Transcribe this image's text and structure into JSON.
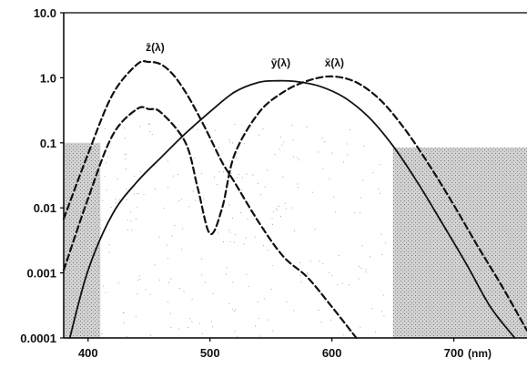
{
  "chart_data": {
    "type": "line",
    "title": "",
    "xlabel": "(nm)",
    "ylabel": "",
    "x_unit": "(nm)",
    "xlim": [
      380,
      760
    ],
    "ylim": [
      0.0001,
      10
    ],
    "yscale": "log",
    "grid": false,
    "legend": "none",
    "x_ticks": [
      {
        "value": 400,
        "label": "400"
      },
      {
        "value": 500,
        "label": "500"
      },
      {
        "value": 600,
        "label": "600"
      },
      {
        "value": 700,
        "label": "700"
      }
    ],
    "y_ticks": [
      {
        "value": 10,
        "label": "10.0"
      },
      {
        "value": 1,
        "label": "1.0"
      },
      {
        "value": 0.1,
        "label": "0.1"
      },
      {
        "value": 0.01,
        "label": "0.01"
      },
      {
        "value": 0.001,
        "label": "0.001"
      },
      {
        "value": 0.0001,
        "label": "0.0001"
      }
    ],
    "series": [
      {
        "name": "z̄(λ)",
        "label_at": [
          455,
          2.6
        ],
        "style": "dashed",
        "x": [
          380,
          400,
          420,
          440,
          450,
          460,
          470,
          480,
          490,
          500,
          510,
          520,
          540,
          560,
          580,
          600,
          620
        ],
        "y": [
          0.0068,
          0.068,
          0.55,
          1.6,
          1.75,
          1.6,
          1.1,
          0.6,
          0.28,
          0.12,
          0.05,
          0.025,
          0.006,
          0.0018,
          0.00085,
          0.0003,
          0.0001
        ]
      },
      {
        "name": "ȳ(λ)",
        "label_at": [
          558,
          1.5
        ],
        "style": "solid",
        "x": [
          385,
          400,
          420,
          440,
          460,
          480,
          500,
          520,
          540,
          555,
          570,
          590,
          610,
          630,
          650,
          670,
          690,
          710,
          730,
          750
        ],
        "y": [
          0.0001,
          0.0011,
          0.008,
          0.025,
          0.06,
          0.14,
          0.3,
          0.6,
          0.85,
          0.9,
          0.88,
          0.74,
          0.5,
          0.25,
          0.09,
          0.025,
          0.006,
          0.0014,
          0.0003,
          0.0001
        ]
      },
      {
        "name": "x̄(λ)",
        "label_at": [
          602,
          1.5
        ],
        "style": "dashed",
        "x": [
          380,
          400,
          420,
          440,
          450,
          460,
          480,
          490,
          500,
          510,
          520,
          540,
          560,
          580,
          600,
          620,
          640,
          660,
          680,
          700,
          720,
          740,
          760
        ],
        "y": [
          0.0011,
          0.014,
          0.13,
          0.33,
          0.33,
          0.29,
          0.1,
          0.02,
          0.004,
          0.01,
          0.065,
          0.29,
          0.6,
          0.9,
          1.05,
          0.85,
          0.45,
          0.16,
          0.045,
          0.011,
          0.0025,
          0.0006,
          0.00013
        ]
      }
    ],
    "shading": {
      "color": "#bdbdbd",
      "left_band_top": 0.1,
      "left_band_x": [
        380,
        410
      ],
      "right_band_top": 0.085,
      "right_band_x": [
        650,
        760
      ]
    }
  }
}
